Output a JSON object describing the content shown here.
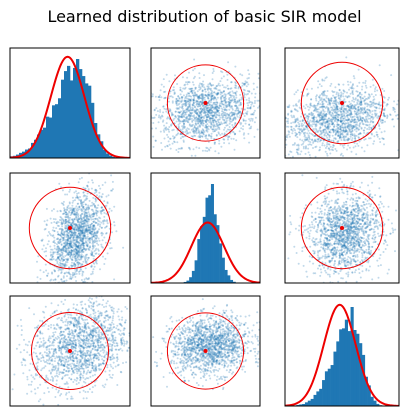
{
  "chart_data": {
    "title": "Learned distribution of basic SIR model",
    "type": "pair-plot",
    "grid_size": 3,
    "axes_ticks_visible": false,
    "colors": {
      "samples": "#1f77b4",
      "prior": "#ee0000",
      "frame": "#000000"
    },
    "diagonal": [
      {
        "row": 0,
        "col": 0,
        "type": "histogram",
        "hist_mean": 0.58,
        "hist_sd": 0.16,
        "hist_skew": "left",
        "prior_mean": 0.48,
        "prior_sd": 0.14
      },
      {
        "row": 1,
        "col": 1,
        "type": "histogram",
        "hist_mean": 0.54,
        "hist_sd": 0.075,
        "hist_skew": "none",
        "prior_mean": 0.52,
        "prior_sd": 0.15
      },
      {
        "row": 2,
        "col": 2,
        "type": "histogram",
        "hist_mean": 0.6,
        "hist_sd": 0.13,
        "hist_skew": "left",
        "prior_mean": 0.48,
        "prior_sd": 0.14
      }
    ],
    "off_diagonal": [
      {
        "row": 0,
        "col": 1,
        "type": "scatter",
        "cloud_center": [
          0.5,
          0.42
        ],
        "cloud_spread": [
          0.24,
          0.15
        ],
        "correlation": 0.15,
        "prior_center": [
          0.5,
          0.5
        ],
        "prior_radius": 0.35
      },
      {
        "row": 0,
        "col": 2,
        "type": "scatter",
        "cloud_center": [
          0.45,
          0.35
        ],
        "cloud_spread": [
          0.24,
          0.16
        ],
        "correlation": 0.3,
        "prior_center": [
          0.5,
          0.5
        ],
        "prior_radius": 0.37
      },
      {
        "row": 1,
        "col": 0,
        "type": "scatter",
        "cloud_center": [
          0.56,
          0.42
        ],
        "cloud_spread": [
          0.12,
          0.2
        ],
        "correlation": 0.35,
        "prior_center": [
          0.5,
          0.5
        ],
        "prior_radius": 0.37
      },
      {
        "row": 1,
        "col": 2,
        "type": "scatter",
        "cloud_center": [
          0.53,
          0.45
        ],
        "cloud_spread": [
          0.16,
          0.18
        ],
        "correlation": 0.1,
        "prior_center": [
          0.5,
          0.5
        ],
        "prior_radius": 0.37
      },
      {
        "row": 2,
        "col": 0,
        "type": "scatter",
        "cloud_center": [
          0.58,
          0.55
        ],
        "cloud_spread": [
          0.2,
          0.2
        ],
        "correlation": 0.25,
        "prior_center": [
          0.5,
          0.5
        ],
        "prior_radius": 0.35
      },
      {
        "row": 2,
        "col": 1,
        "type": "scatter",
        "cloud_center": [
          0.55,
          0.55
        ],
        "cloud_spread": [
          0.18,
          0.13
        ],
        "correlation": 0.1,
        "prior_center": [
          0.5,
          0.5
        ],
        "prior_radius": 0.35
      }
    ]
  }
}
